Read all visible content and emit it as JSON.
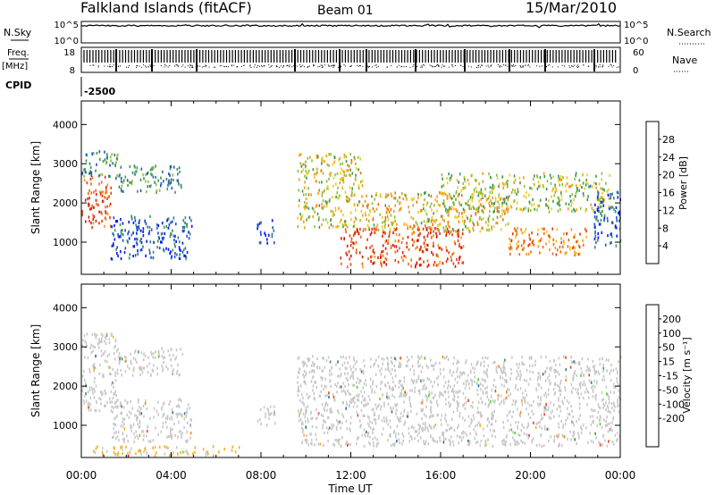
{
  "header": {
    "title": "Falkland Islands (fitACF)",
    "beam": "Beam 01",
    "date": "15/Mar/2010"
  },
  "panels": {
    "nsky": {
      "label": "N.Sky",
      "ticks_left": [
        "10^5",
        "10^0"
      ],
      "ticks_right": [
        "10^5",
        "10^0"
      ],
      "right_label": "N.Search"
    },
    "freq": {
      "label_1": "Freq.",
      "label_2": "[MHz]",
      "ticks_left": [
        "18",
        "8"
      ],
      "ticks_right": [
        "60",
        "0"
      ],
      "right_label": "Nave"
    },
    "cpid": {
      "label": "CPID",
      "value": "-2500"
    }
  },
  "colors": {
    "power": [
      "#0016ff",
      "#1f4fc8",
      "#2b7a8c",
      "#3c9a4e",
      "#8fbf35",
      "#f2c81c",
      "#f59a16",
      "#ee6a12",
      "#e53a10",
      "#d41a0b"
    ],
    "velocity": [
      "#e3160f",
      "#ee4a12",
      "#f3881a",
      "#f6b020",
      "#c8c8c8",
      "#c8c8c8",
      "#49d421",
      "#3c9a4e",
      "#2b6fb0",
      "#1f39b8"
    ]
  },
  "chart_data": [
    {
      "type": "heatmap",
      "title": "",
      "quantity": "Power",
      "xlabel": "",
      "ylabel": "Slant Range [km]",
      "xlim": [
        0,
        24
      ],
      "ylim": [
        180,
        4600
      ],
      "yticks": [
        "1000",
        "2000",
        "3000",
        "4000"
      ],
      "colorbar": {
        "label": "Power [dB]",
        "ticks": [
          "4",
          "8",
          "12",
          "16",
          "20",
          "24",
          "28"
        ],
        "range": [
          0,
          32
        ]
      },
      "regions": [
        {
          "t": [
            0.0,
            1.3
          ],
          "r": [
            1400,
            2700
          ],
          "level": 26
        },
        {
          "t": [
            0.0,
            1.6
          ],
          "r": [
            2700,
            3400
          ],
          "level": 10
        },
        {
          "t": [
            1.3,
            4.9
          ],
          "r": [
            600,
            1700
          ],
          "level": 5
        },
        {
          "t": [
            1.5,
            4.5
          ],
          "r": [
            2300,
            3000
          ],
          "level": 10
        },
        {
          "t": [
            7.8,
            8.6
          ],
          "r": [
            1000,
            1600
          ],
          "level": 4
        },
        {
          "t": [
            9.6,
            12.5
          ],
          "r": [
            1400,
            3300
          ],
          "level": 17
        },
        {
          "t": [
            11.5,
            17.0
          ],
          "r": [
            400,
            1400
          ],
          "level": 27
        },
        {
          "t": [
            12.5,
            19.0
          ],
          "r": [
            1300,
            2300
          ],
          "level": 18
        },
        {
          "t": [
            16.0,
            23.5
          ],
          "r": [
            1800,
            2800
          ],
          "level": 15
        },
        {
          "t": [
            19.0,
            22.5
          ],
          "r": [
            700,
            1400
          ],
          "level": 22
        },
        {
          "t": [
            22.8,
            24.0
          ],
          "r": [
            900,
            2400
          ],
          "level": 6
        }
      ]
    },
    {
      "type": "heatmap",
      "title": "",
      "quantity": "Velocity",
      "xlabel": "Time UT",
      "ylabel": "Slant Range [km]",
      "xlim": [
        0,
        24
      ],
      "ylim": [
        180,
        4600
      ],
      "xticks": [
        "00:00",
        "04:00",
        "08:00",
        "12:00",
        "16:00",
        "20:00",
        "00:00"
      ],
      "yticks": [
        "1000",
        "2000",
        "3000",
        "4000"
      ],
      "colorbar": {
        "label": "Velocity [m s⁻¹]",
        "ticks": [
          "200",
          "100",
          "50",
          "15",
          "-15",
          "-50",
          "-100",
          "-200"
        ],
        "range": [
          -250,
          250
        ]
      },
      "regions": [
        {
          "t": [
            0.0,
            1.6
          ],
          "r": [
            1400,
            3400
          ],
          "level": 0
        },
        {
          "t": [
            1.3,
            4.9
          ],
          "r": [
            600,
            1700
          ],
          "level": 0
        },
        {
          "t": [
            1.5,
            4.5
          ],
          "r": [
            2300,
            3000
          ],
          "level": 0
        },
        {
          "t": [
            0.5,
            7.0
          ],
          "r": [
            250,
            500
          ],
          "level": -60
        },
        {
          "t": [
            7.8,
            8.6
          ],
          "r": [
            1000,
            1600
          ],
          "level": 0
        },
        {
          "t": [
            9.6,
            24.0
          ],
          "r": [
            500,
            2800
          ],
          "level": 0
        }
      ]
    }
  ]
}
